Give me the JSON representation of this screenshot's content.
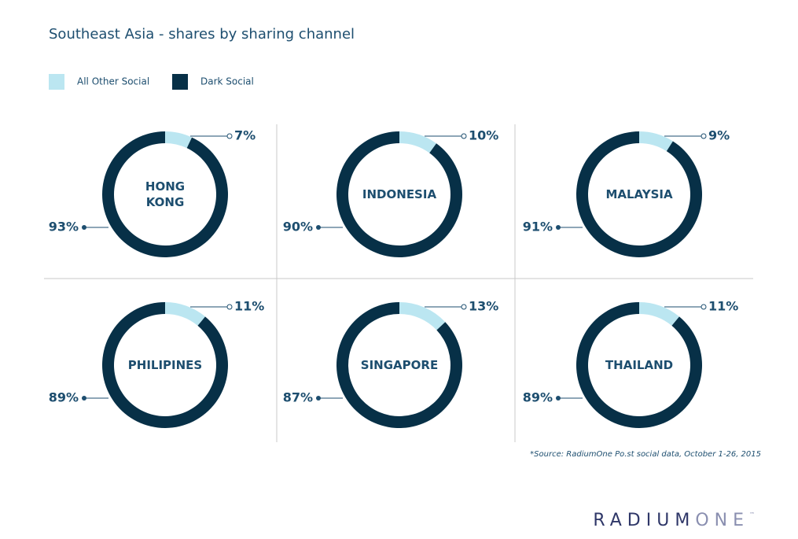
{
  "title": "Southeast Asia - shares by sharing channel",
  "source": "*Source: RadiumOne Po.st social data, October 1-26, 2015",
  "logo": {
    "part1": "RADIUM",
    "part2": "ONE",
    "mark": "™"
  },
  "chart_data": [
    {
      "type": "pie",
      "title": "HONG\nKONG",
      "categories": [
        "All Other Social",
        "Dark Social"
      ],
      "values": [
        7,
        93
      ],
      "value_labels": [
        "7%",
        "93%"
      ],
      "colors": [
        "#bbe6f1",
        "#073047"
      ]
    },
    {
      "type": "pie",
      "title": "INDONESIA",
      "categories": [
        "All Other Social",
        "Dark Social"
      ],
      "values": [
        10,
        90
      ],
      "value_labels": [
        "10%",
        "90%"
      ],
      "colors": [
        "#bbe6f1",
        "#073047"
      ]
    },
    {
      "type": "pie",
      "title": "MALAYSIA",
      "categories": [
        "All Other Social",
        "Dark Social"
      ],
      "values": [
        9,
        91
      ],
      "value_labels": [
        "9%",
        "91%"
      ],
      "colors": [
        "#bbe6f1",
        "#073047"
      ]
    },
    {
      "type": "pie",
      "title": "PHILIPINES",
      "categories": [
        "All Other Social",
        "Dark Social"
      ],
      "values": [
        11,
        89
      ],
      "value_labels": [
        "11%",
        "89%"
      ],
      "colors": [
        "#bbe6f1",
        "#073047"
      ]
    },
    {
      "type": "pie",
      "title": "SINGAPORE",
      "categories": [
        "All Other Social",
        "Dark Social"
      ],
      "values": [
        13,
        87
      ],
      "value_labels": [
        "13%",
        "87%"
      ],
      "colors": [
        "#bbe6f1",
        "#073047"
      ]
    },
    {
      "type": "pie",
      "title": "THAILAND",
      "categories": [
        "All Other Social",
        "Dark Social"
      ],
      "values": [
        11,
        89
      ],
      "value_labels": [
        "11%",
        "89%"
      ],
      "colors": [
        "#bbe6f1",
        "#073047"
      ]
    }
  ]
}
